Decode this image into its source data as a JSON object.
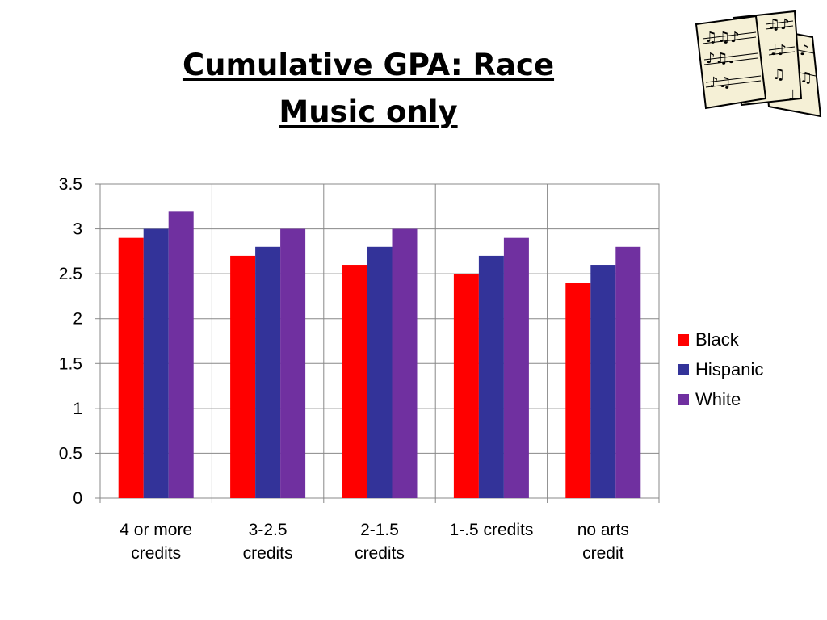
{
  "slide": {
    "title_line1": "Cumulative GPA: Race",
    "title_line2": "Music only"
  },
  "clipart": {
    "icon": "sheet-music-icon"
  },
  "chart_data": {
    "type": "bar",
    "categories": [
      [
        "4 or more",
        "credits"
      ],
      [
        "3-2.5",
        "credits"
      ],
      [
        "2-1.5",
        "credits"
      ],
      [
        "1-.5 credits"
      ],
      [
        "no arts",
        "credit"
      ]
    ],
    "series": [
      {
        "name": "Black",
        "color": "#FF0000",
        "values": [
          2.9,
          2.7,
          2.6,
          2.5,
          2.4
        ]
      },
      {
        "name": "Hispanic",
        "color": "#333399",
        "values": [
          3.0,
          2.8,
          2.8,
          2.7,
          2.6
        ]
      },
      {
        "name": "White",
        "color": "#7030A0",
        "values": [
          3.2,
          3.0,
          3.0,
          2.9,
          2.8
        ]
      }
    ],
    "yticks": [
      "0",
      "0.5",
      "1",
      "1.5",
      "2",
      "2.5",
      "3",
      "3.5"
    ],
    "ylim": [
      0,
      3.5
    ],
    "grid": true,
    "legend": "right",
    "title": "",
    "xlabel": "",
    "ylabel": ""
  }
}
